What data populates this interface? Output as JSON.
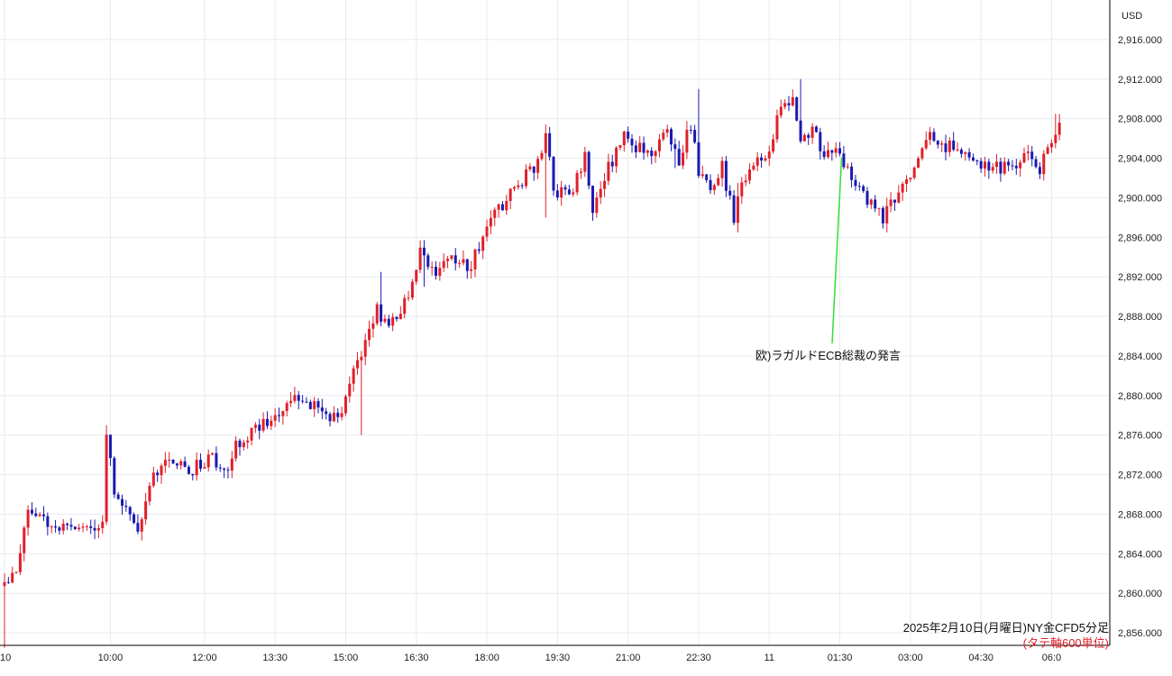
{
  "currency_label": "USD",
  "caption": {
    "line1": "2025年2月10日(月曜日)NY金CFD5分足",
    "line2": "(タテ軸600単位)"
  },
  "annotation": {
    "text": "欧)ラガルドECB総裁の発言"
  },
  "colors": {
    "up": "#e0202a",
    "down": "#1a1ab0",
    "grid": "#e6ebf2",
    "axis_line": "#000000",
    "annotation_line": "#33e033"
  },
  "chart_data": {
    "type": "candlestick",
    "interval": "5m",
    "ylim": [
      2852,
      2920
    ],
    "y_ticks": [
      2856,
      2860,
      2864,
      2868,
      2872,
      2876,
      2880,
      2884,
      2888,
      2892,
      2896,
      2900,
      2904,
      2908,
      2912,
      2916
    ],
    "y_tick_labels": [
      "2,856.000",
      "2,860.000",
      "2,864.000",
      "2,868.000",
      "2,872.000",
      "2,876.000",
      "2,880.000",
      "2,884.000",
      "2,888.000",
      "2,892.000",
      "2,896.000",
      "2,900.000",
      "2,904.000",
      "2,908.000",
      "2,912.000",
      "2,916.000"
    ],
    "x_labels": [
      "10",
      "10:00",
      "12:00",
      "13:30",
      "15:00",
      "16:30",
      "18:00",
      "19:30",
      "21:00",
      "22:30",
      "11",
      "01:30",
      "03:00",
      "04:30",
      "06:0"
    ],
    "x_label_bar_index": [
      0,
      27,
      51,
      69,
      87,
      105,
      123,
      141,
      159,
      177,
      195,
      213,
      231,
      249,
      267
    ],
    "bar_count": 270,
    "path_points": [
      [
        0,
        2861
      ],
      [
        3,
        2862
      ],
      [
        6,
        2868.5
      ],
      [
        10,
        2867.5
      ],
      [
        16,
        2866.5
      ],
      [
        23,
        2867
      ],
      [
        25,
        2867.5
      ],
      [
        26,
        2875.5
      ],
      [
        28,
        2870.5
      ],
      [
        31,
        2869
      ],
      [
        34,
        2866.5
      ],
      [
        37,
        2871.5
      ],
      [
        42,
        2874
      ],
      [
        47,
        2872.5
      ],
      [
        52,
        2873.5
      ],
      [
        57,
        2873
      ],
      [
        60,
        2875.5
      ],
      [
        65,
        2877
      ],
      [
        70,
        2878.5
      ],
      [
        74,
        2879.5
      ],
      [
        80,
        2878.5
      ],
      [
        85,
        2877.5
      ],
      [
        87,
        2880
      ],
      [
        92,
        2885
      ],
      [
        95,
        2888.5
      ],
      [
        98,
        2887
      ],
      [
        103,
        2890
      ],
      [
        106,
        2895
      ],
      [
        110,
        2892
      ],
      [
        115,
        2894
      ],
      [
        119,
        2893
      ],
      [
        124,
        2898
      ],
      [
        128,
        2900
      ],
      [
        135,
        2903
      ],
      [
        138,
        2906
      ],
      [
        140,
        2901
      ],
      [
        144,
        2900
      ],
      [
        148,
        2904
      ],
      [
        150,
        2899
      ],
      [
        154,
        2903
      ],
      [
        158,
        2906
      ],
      [
        165,
        2904
      ],
      [
        169,
        2906.5
      ],
      [
        172,
        2904
      ],
      [
        175,
        2907.5
      ],
      [
        177,
        2903
      ],
      [
        180,
        2901
      ],
      [
        183,
        2903
      ],
      [
        186,
        2898
      ],
      [
        188,
        2901
      ],
      [
        191,
        2903
      ],
      [
        195,
        2905
      ],
      [
        197,
        2908
      ],
      [
        201,
        2910
      ],
      [
        203,
        2906
      ],
      [
        207,
        2907
      ],
      [
        209,
        2904
      ],
      [
        213,
        2904.5
      ],
      [
        215,
        2903
      ],
      [
        217,
        2901
      ],
      [
        220,
        2900
      ],
      [
        224,
        2898
      ],
      [
        228,
        2901
      ],
      [
        232,
        2903
      ],
      [
        235,
        2906
      ],
      [
        242,
        2905
      ],
      [
        245,
        2905
      ],
      [
        248,
        2903.5
      ],
      [
        253,
        2903
      ],
      [
        258,
        2903.5
      ],
      [
        261,
        2904
      ],
      [
        264,
        2903
      ],
      [
        267,
        2906
      ],
      [
        269,
        2907
      ]
    ],
    "extremes": [
      {
        "bar": 0,
        "high": 2862,
        "low": 2854.5
      },
      {
        "bar": 26,
        "high": 2877,
        "low": 2868.5
      },
      {
        "bar": 91,
        "high": 2879.5,
        "low": 2876
      },
      {
        "bar": 96,
        "high": 2892.5,
        "low": 2887
      },
      {
        "bar": 107,
        "high": 2895.5,
        "low": 2891
      },
      {
        "bar": 138,
        "high": 2906.5,
        "low": 2898
      },
      {
        "bar": 171,
        "high": 2906,
        "low": 2903
      },
      {
        "bar": 177,
        "high": 2911,
        "low": 2902
      },
      {
        "bar": 187,
        "high": 2901.5,
        "low": 2896.5
      },
      {
        "bar": 203,
        "high": 2912,
        "low": 2906
      },
      {
        "bar": 225,
        "high": 2900,
        "low": 2896.5
      },
      {
        "bar": 268,
        "high": 2908.5,
        "low": 2905
      }
    ],
    "annotations": [
      {
        "text": "欧)ラガルドECB総裁の発言",
        "bar": 213,
        "price": 2904
      }
    ]
  }
}
